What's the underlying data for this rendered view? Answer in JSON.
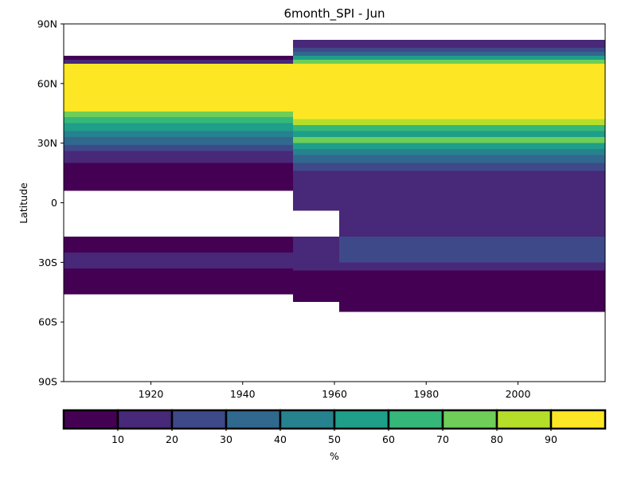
{
  "chart_data": {
    "type": "heatmap",
    "title": "6month_SPI - Jun",
    "xlabel": "",
    "ylabel": "Latitude",
    "xlim": [
      1901,
      2019
    ],
    "ylim": [
      -90,
      90
    ],
    "x_ticks": [
      {
        "value": 1920,
        "label": "1920"
      },
      {
        "value": 1940,
        "label": "1940"
      },
      {
        "value": 1960,
        "label": "1960"
      },
      {
        "value": 1980,
        "label": "1980"
      },
      {
        "value": 2000,
        "label": "2000"
      }
    ],
    "y_ticks": [
      {
        "value": 90,
        "label": "90N"
      },
      {
        "value": 60,
        "label": "60N"
      },
      {
        "value": 30,
        "label": "30N"
      },
      {
        "value": 0,
        "label": "0"
      },
      {
        "value": -30,
        "label": "30S"
      },
      {
        "value": -60,
        "label": "60S"
      },
      {
        "value": -90,
        "label": "90S"
      }
    ],
    "colorbar": {
      "label": "%",
      "range": [
        0,
        100
      ],
      "bins": [
        {
          "from": 0,
          "to": 10,
          "color": "#440154"
        },
        {
          "from": 10,
          "to": 20,
          "color": "#482878"
        },
        {
          "from": 20,
          "to": 30,
          "color": "#3e4989"
        },
        {
          "from": 30,
          "to": 40,
          "color": "#31688e"
        },
        {
          "from": 40,
          "to": 50,
          "color": "#26828e"
        },
        {
          "from": 50,
          "to": 60,
          "color": "#1f9e89"
        },
        {
          "from": 60,
          "to": 70,
          "color": "#35b779"
        },
        {
          "from": 70,
          "to": 80,
          "color": "#6ece58"
        },
        {
          "from": 80,
          "to": 90,
          "color": "#b5de2b"
        },
        {
          "from": 90,
          "to": 100,
          "color": "#fde725"
        }
      ],
      "tick_labels": [
        "10",
        "20",
        "30",
        "40",
        "50",
        "60",
        "70",
        "80",
        "90"
      ]
    },
    "regions": [
      {
        "x": [
          1901,
          1951
        ],
        "lat": [
          72,
          74
        ],
        "value": 5
      },
      {
        "x": [
          1901,
          1951
        ],
        "lat": [
          70,
          72
        ],
        "value": 15
      },
      {
        "x": [
          1901,
          1951
        ],
        "lat": [
          46,
          70
        ],
        "value": 95
      },
      {
        "x": [
          1901,
          1951
        ],
        "lat": [
          43,
          46
        ],
        "value": 75
      },
      {
        "x": [
          1901,
          1951
        ],
        "lat": [
          40,
          43
        ],
        "value": 65
      },
      {
        "x": [
          1901,
          1951
        ],
        "lat": [
          36,
          40
        ],
        "value": 55
      },
      {
        "x": [
          1901,
          1951
        ],
        "lat": [
          33,
          36
        ],
        "value": 45
      },
      {
        "x": [
          1901,
          1951
        ],
        "lat": [
          29,
          33
        ],
        "value": 35
      },
      {
        "x": [
          1901,
          1951
        ],
        "lat": [
          26,
          29
        ],
        "value": 25
      },
      {
        "x": [
          1901,
          1951
        ],
        "lat": [
          20,
          26
        ],
        "value": 15
      },
      {
        "x": [
          1901,
          1951
        ],
        "lat": [
          6,
          20
        ],
        "value": 5
      },
      {
        "x": [
          1901,
          1951
        ],
        "lat": [
          -25,
          -17
        ],
        "value": 5
      },
      {
        "x": [
          1901,
          1951
        ],
        "lat": [
          -33,
          -25
        ],
        "value": 15
      },
      {
        "x": [
          1901,
          1951
        ],
        "lat": [
          -46,
          -33
        ],
        "value": 5
      },
      {
        "x": [
          1951,
          2019
        ],
        "lat": [
          78,
          82
        ],
        "value": 15
      },
      {
        "x": [
          1951,
          2019
        ],
        "lat": [
          76,
          78
        ],
        "value": 25
      },
      {
        "x": [
          1951,
          2019
        ],
        "lat": [
          74,
          76
        ],
        "value": 35
      },
      {
        "x": [
          1951,
          2019
        ],
        "lat": [
          72,
          74
        ],
        "value": 55
      },
      {
        "x": [
          1951,
          2019
        ],
        "lat": [
          70,
          72
        ],
        "value": 75
      },
      {
        "x": [
          1951,
          2019
        ],
        "lat": [
          42,
          70
        ],
        "value": 95
      },
      {
        "x": [
          1951,
          2019
        ],
        "lat": [
          39,
          42
        ],
        "value": 85
      },
      {
        "x": [
          1951,
          2019
        ],
        "lat": [
          36,
          39
        ],
        "value": 65
      },
      {
        "x": [
          1951,
          2019
        ],
        "lat": [
          33,
          36
        ],
        "value": 55
      },
      {
        "x": [
          1951,
          2019
        ],
        "lat": [
          30,
          33
        ],
        "value": 75
      },
      {
        "x": [
          1951,
          2019
        ],
        "lat": [
          27,
          30
        ],
        "value": 55
      },
      {
        "x": [
          1951,
          2019
        ],
        "lat": [
          24,
          27
        ],
        "value": 45
      },
      {
        "x": [
          1951,
          2019
        ],
        "lat": [
          20,
          24
        ],
        "value": 35
      },
      {
        "x": [
          1951,
          2019
        ],
        "lat": [
          16,
          20
        ],
        "value": 25
      },
      {
        "x": [
          1951,
          2019
        ],
        "lat": [
          -4,
          16
        ],
        "value": 15
      },
      {
        "x": [
          1961,
          2019
        ],
        "lat": [
          -17,
          -4
        ],
        "value": 15
      },
      {
        "x": [
          1961,
          2019
        ],
        "lat": [
          -30,
          -17
        ],
        "value": 25
      },
      {
        "x": [
          1961,
          2019
        ],
        "lat": [
          -34,
          -30
        ],
        "value": 15
      },
      {
        "x": [
          1961,
          2019
        ],
        "lat": [
          -55,
          -34
        ],
        "value": 5
      },
      {
        "x": [
          1951,
          1961
        ],
        "lat": [
          -34,
          -17
        ],
        "value": 15
      },
      {
        "x": [
          1951,
          1961
        ],
        "lat": [
          -50,
          -34
        ],
        "value": 5
      }
    ]
  }
}
